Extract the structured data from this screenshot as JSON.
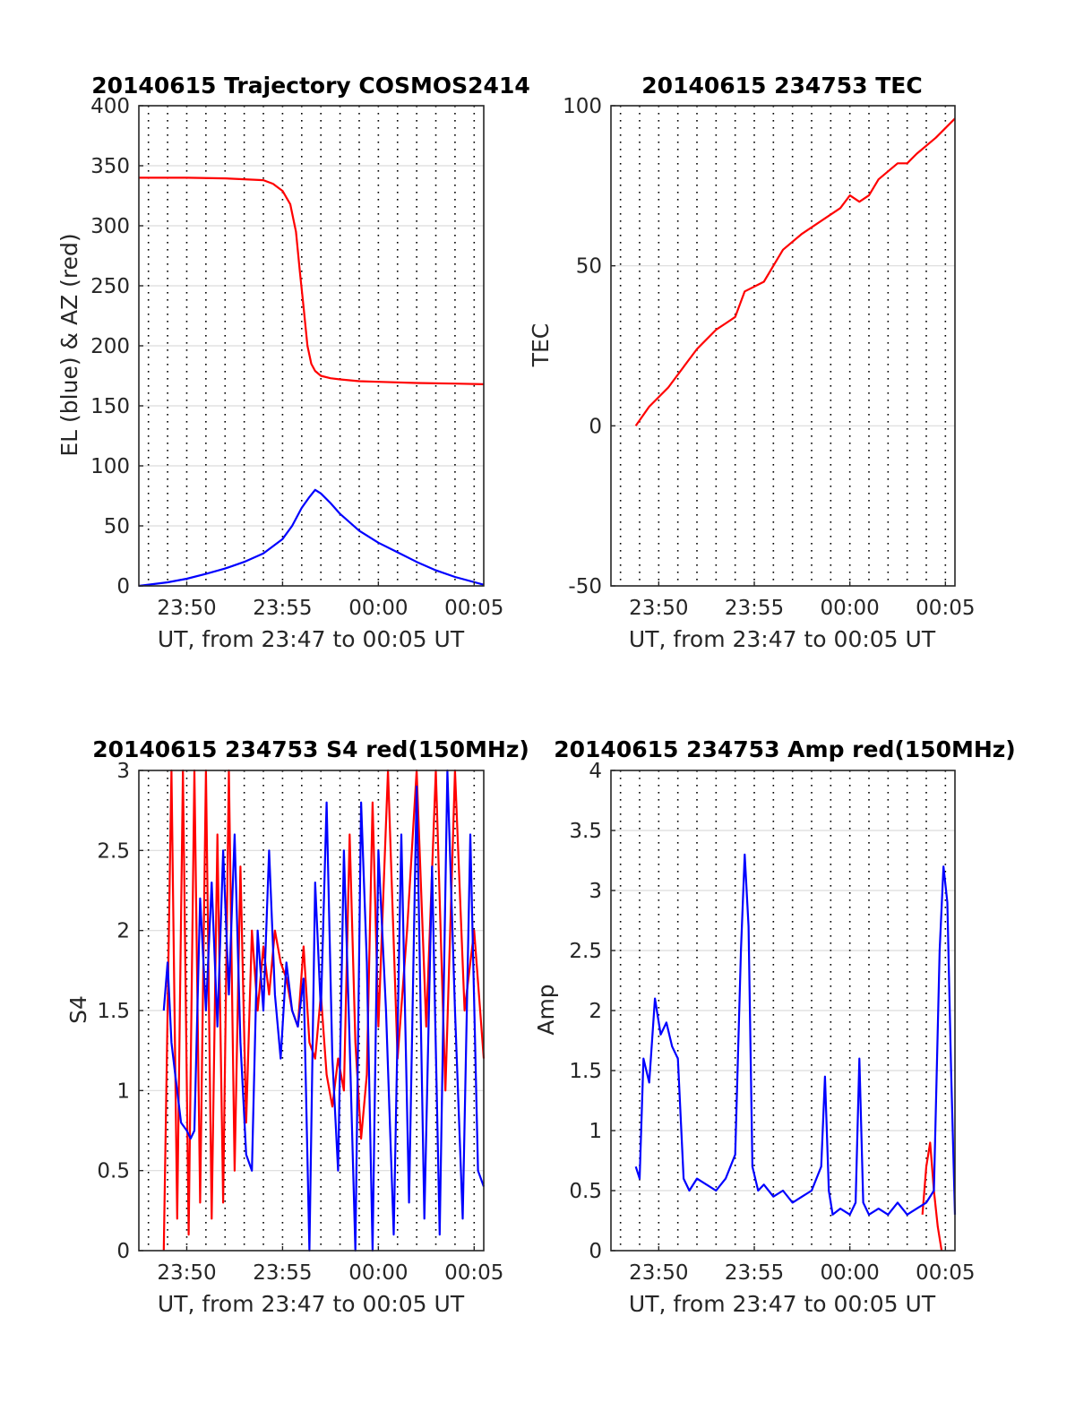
{
  "chart_data": [
    {
      "id": "traj",
      "type": "line",
      "title": "20140615 Trajectory COSMOS2414",
      "xlabel": "UT, from 23:47 to 00:05 UT",
      "ylabel": "EL (blue) & AZ (red)",
      "xlim_min": [
        -12.5,
        5.5
      ],
      "ylim": [
        0,
        400
      ],
      "yticks": [
        0,
        50,
        100,
        150,
        200,
        250,
        300,
        350,
        400
      ],
      "ytick_labels": [
        "0",
        "50",
        "100",
        "150",
        "200",
        "250",
        "300",
        "350",
        "400"
      ],
      "xticks_min": [
        -10,
        -5,
        0,
        5
      ],
      "xtick_labels": [
        "23:50",
        "23:55",
        "00:00",
        "00:05"
      ],
      "grid_y": "on",
      "grid_x_minutes": "every minute, dotted",
      "series": [
        {
          "color": "#ff0000",
          "x_min": [
            -12.5,
            -10,
            -8,
            -6,
            -5.5,
            -5,
            -4.6,
            -4.3,
            -4.1,
            -3.9,
            -3.7,
            -3.5,
            -3.3,
            -3.0,
            -2.5,
            -2,
            -1,
            0,
            2,
            4,
            5.5
          ],
          "values": [
            340,
            340,
            339.5,
            338,
            335,
            329,
            318,
            295,
            262,
            232,
            200,
            185,
            179,
            175,
            173,
            172,
            170.5,
            170,
            169,
            168.5,
            168
          ]
        },
        {
          "color": "#0000ff",
          "x_min": [
            -12.5,
            -11,
            -10,
            -9,
            -8,
            -7,
            -6,
            -5,
            -4.5,
            -4.0,
            -3.6,
            -3.3,
            -3.0,
            -2.5,
            -2,
            -1,
            0,
            1,
            2,
            3,
            4,
            5.5
          ],
          "values": [
            0,
            3,
            6,
            10,
            14.5,
            20,
            27,
            39,
            50,
            65,
            74,
            80,
            77,
            69,
            60,
            46,
            36,
            28,
            20,
            13,
            7.5,
            1
          ]
        }
      ]
    },
    {
      "id": "tec",
      "type": "line",
      "title": "20140615 234753 TEC",
      "xlabel": "UT, from 23:47 to 00:05 UT",
      "ylabel": "TEC",
      "xlim_min": [
        -12.5,
        5.5
      ],
      "ylim": [
        -50,
        100
      ],
      "yticks": [
        -50,
        0,
        50,
        100
      ],
      "ytick_labels": [
        "-50",
        "0",
        "50",
        "100"
      ],
      "xticks_min": [
        -10,
        -5,
        0,
        5
      ],
      "xtick_labels": [
        "23:50",
        "23:55",
        "00:00",
        "00:05"
      ],
      "grid_y": "on",
      "series": [
        {
          "color": "#ff0000",
          "x_min": [
            -11.2,
            -10.5,
            -9.5,
            -8.5,
            -8,
            -7.0,
            -6.5,
            -6.0,
            -5.5,
            -4.5,
            -4.0,
            -3.5,
            -2.5,
            -1.5,
            -0.5,
            0,
            0.5,
            1.0,
            1.5,
            2.5,
            3.0,
            3.5,
            4.5,
            5.5
          ],
          "values": [
            0,
            6,
            12,
            20,
            24,
            30,
            32,
            34,
            42,
            45,
            50,
            55,
            60,
            64,
            68,
            72,
            70,
            72,
            77,
            82,
            82,
            85,
            90,
            96
          ]
        }
      ]
    },
    {
      "id": "s4",
      "type": "line",
      "title": "20140615 234753 S4 red(150MHz)",
      "xlabel": "UT, from 23:47 to 00:05 UT",
      "ylabel": "S4",
      "xlim_min": [
        -12.5,
        5.5
      ],
      "ylim": [
        0,
        3
      ],
      "yticks": [
        0,
        0.5,
        1,
        1.5,
        2,
        2.5,
        3
      ],
      "ytick_labels": [
        "0",
        "0.5",
        "1",
        "1.5",
        "2",
        "2.5",
        "3"
      ],
      "xticks_min": [
        -10,
        -5,
        0,
        5
      ],
      "xtick_labels": [
        "23:50",
        "23:55",
        "00:00",
        "00:05"
      ],
      "grid_y": "on",
      "series": [
        {
          "color": "#ff0000",
          "x_min": [
            -11.2,
            -10.8,
            -10.5,
            -10.2,
            -9.9,
            -9.6,
            -9.3,
            -9.0,
            -8.7,
            -8.4,
            -8.1,
            -7.8,
            -7.5,
            -7.2,
            -6.9,
            -6.6,
            -6.3,
            -6.0,
            -5.7,
            -5.4,
            -5.1,
            -4.8,
            -4.5,
            -4.2,
            -3.9,
            -3.6,
            -3.3,
            -3.0,
            -2.7,
            -2.4,
            -2.1,
            -1.8,
            -1.5,
            -1.2,
            -0.9,
            -0.6,
            -0.3,
            0,
            0.5,
            1.0,
            1.5,
            2.0,
            2.5,
            3.0,
            3.5,
            4.0,
            4.5,
            5.0,
            5.5
          ],
          "values": [
            0,
            3,
            0.2,
            3,
            0.1,
            3,
            0.3,
            3,
            0.2,
            2.6,
            0.3,
            3,
            0.5,
            2.4,
            0.8,
            2.0,
            1.5,
            1.9,
            1.6,
            2.0,
            1.8,
            1.7,
            1.5,
            1.4,
            1.9,
            1.3,
            1.2,
            1.6,
            1.1,
            0.9,
            1.2,
            1.0,
            2.6,
            1.3,
            0.7,
            1.1,
            2.8,
            1.4,
            3,
            1.2,
            2.0,
            3,
            1.4,
            3,
            1.0,
            3,
            1.5,
            2.0,
            1.2
          ]
        },
        {
          "color": "#0000ff",
          "x_min": [
            -11.2,
            -11.0,
            -10.8,
            -10.6,
            -10.3,
            -10.0,
            -9.8,
            -9.6,
            -9.3,
            -9.0,
            -8.7,
            -8.4,
            -8.1,
            -7.8,
            -7.5,
            -7.2,
            -6.9,
            -6.6,
            -6.3,
            -6.0,
            -5.7,
            -5.4,
            -5.1,
            -4.8,
            -4.5,
            -4.2,
            -3.9,
            -3.6,
            -3.3,
            -3.0,
            -2.7,
            -2.4,
            -2.1,
            -1.8,
            -1.5,
            -1.2,
            -0.9,
            -0.6,
            -0.3,
            0,
            0.4,
            0.8,
            1.2,
            1.6,
            2.0,
            2.4,
            2.8,
            3.2,
            3.6,
            4.0,
            4.4,
            4.8,
            5.2,
            5.5
          ],
          "values": [
            1.5,
            1.8,
            1.3,
            1.1,
            0.8,
            0.75,
            0.7,
            0.75,
            2.2,
            1.5,
            2.3,
            1.4,
            2.5,
            1.6,
            2.6,
            1.3,
            0.6,
            0.5,
            2.0,
            1.5,
            2.5,
            1.6,
            1.2,
            1.8,
            1.5,
            1.4,
            1.7,
            0,
            2.3,
            1.5,
            2.8,
            1.2,
            0.5,
            2.5,
            1.3,
            0,
            2.8,
            1.8,
            0,
            2.5,
            1.5,
            0.1,
            2.6,
            0.3,
            2.9,
            0.2,
            2.4,
            0.1,
            3.0,
            1.5,
            0.2,
            2.6,
            0.5,
            0.4
          ]
        }
      ]
    },
    {
      "id": "amp",
      "type": "line",
      "title": "20140615 234753 Amp red(150MHz)",
      "xlabel": "UT, from 23:47 to 00:05 UT",
      "ylabel": "Amp",
      "xlim_min": [
        -12.5,
        5.5
      ],
      "ylim": [
        0,
        4
      ],
      "yticks": [
        0,
        0.5,
        1,
        1.5,
        2,
        2.5,
        3,
        3.5,
        4
      ],
      "ytick_labels": [
        "0",
        "0.5",
        "1",
        "1.5",
        "2",
        "2.5",
        "3",
        "3.5",
        "4"
      ],
      "xticks_min": [
        -10,
        -5,
        0,
        5
      ],
      "xtick_labels": [
        "23:50",
        "23:55",
        "00:00",
        "00:05"
      ],
      "grid_y": "on",
      "series": [
        {
          "color": "#ff0000",
          "x_min": [
            3.8,
            4.0,
            4.2,
            4.4,
            4.6,
            4.8
          ],
          "values": [
            0.3,
            0.7,
            0.9,
            0.5,
            0.2,
            0.0
          ]
        },
        {
          "color": "#0000ff",
          "x_min": [
            -11.2,
            -11.0,
            -10.8,
            -10.5,
            -10.2,
            -9.9,
            -9.6,
            -9.3,
            -9.0,
            -8.7,
            -8.4,
            -8.0,
            -7.5,
            -7.0,
            -6.5,
            -6.0,
            -5.7,
            -5.5,
            -5.3,
            -5.1,
            -4.8,
            -4.5,
            -4.0,
            -3.5,
            -3.0,
            -2.5,
            -2.0,
            -1.5,
            -1.3,
            -1.1,
            -0.9,
            -0.5,
            0,
            0.3,
            0.5,
            0.7,
            1.0,
            1.5,
            2.0,
            2.5,
            3.0,
            3.5,
            4.0,
            4.4,
            4.7,
            4.9,
            5.1,
            5.3,
            5.5
          ],
          "values": [
            0.7,
            0.6,
            1.6,
            1.4,
            2.1,
            1.8,
            1.9,
            1.7,
            1.6,
            0.6,
            0.5,
            0.6,
            0.55,
            0.5,
            0.6,
            0.8,
            2.5,
            3.3,
            2.7,
            0.7,
            0.5,
            0.55,
            0.45,
            0.5,
            0.4,
            0.45,
            0.5,
            0.7,
            1.45,
            0.5,
            0.3,
            0.35,
            0.3,
            0.4,
            1.6,
            0.4,
            0.3,
            0.35,
            0.3,
            0.4,
            0.3,
            0.35,
            0.4,
            0.5,
            2.5,
            3.2,
            2.9,
            1.5,
            0.3
          ]
        }
      ]
    }
  ]
}
